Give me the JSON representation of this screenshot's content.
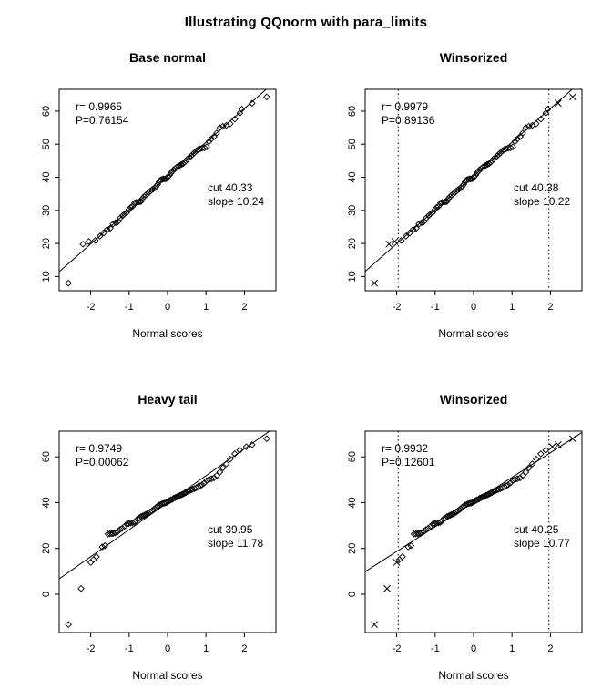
{
  "chart_data": {
    "type": "scatter",
    "layout": "2x2 QQ-plot panel figure",
    "main_title": "Illustrating QQnorm with para_limits",
    "xlabel": "Normal scores",
    "xlim": [
      -2.82,
      2.82
    ],
    "xticks": [
      -2,
      -1,
      0,
      1,
      2
    ],
    "marker_inside": "open-diamond",
    "marker_beyond_cutoff": "x-cross",
    "colors": {
      "foreground": "#000000",
      "background": "#ffffff"
    },
    "point_sets": {
      "base": [
        [
          -2.58,
          8.0
        ],
        [
          -2.2,
          19.8
        ],
        [
          -2.05,
          20.6
        ],
        [
          -1.88,
          20.9
        ],
        [
          -1.76,
          22.2
        ],
        [
          -1.66,
          23.2
        ],
        [
          -1.57,
          24.2
        ],
        [
          -1.49,
          24.6
        ],
        [
          -1.42,
          25.9
        ],
        [
          -1.35,
          26.3
        ],
        [
          -1.29,
          26.6
        ],
        [
          -1.23,
          27.7
        ],
        [
          -1.17,
          28.4
        ],
        [
          -1.12,
          28.9
        ],
        [
          -1.06,
          29.4
        ],
        [
          -1.01,
          30.2
        ],
        [
          -0.96,
          30.9
        ],
        [
          -0.91,
          31.2
        ],
        [
          -0.86,
          32.2
        ],
        [
          -0.82,
          32.4
        ],
        [
          -0.77,
          32.5
        ],
        [
          -0.73,
          32.6
        ],
        [
          -0.69,
          32.7
        ],
        [
          -0.65,
          33.6
        ],
        [
          -0.61,
          34.2
        ],
        [
          -0.57,
          34.6
        ],
        [
          -0.53,
          35.0
        ],
        [
          -0.49,
          35.3
        ],
        [
          -0.45,
          35.8
        ],
        [
          -0.41,
          36.2
        ],
        [
          -0.37,
          36.5
        ],
        [
          -0.33,
          36.8
        ],
        [
          -0.3,
          37.2
        ],
        [
          -0.26,
          37.8
        ],
        [
          -0.22,
          38.6
        ],
        [
          -0.18,
          39.2
        ],
        [
          -0.14,
          39.4
        ],
        [
          -0.1,
          39.5
        ],
        [
          -0.07,
          39.5
        ],
        [
          -0.03,
          39.6
        ],
        [
          0.01,
          40.1
        ],
        [
          0.05,
          40.6
        ],
        [
          0.09,
          41.3
        ],
        [
          0.13,
          41.9
        ],
        [
          0.16,
          42.3
        ],
        [
          0.2,
          42.6
        ],
        [
          0.24,
          43.0
        ],
        [
          0.28,
          43.4
        ],
        [
          0.32,
          43.6
        ],
        [
          0.36,
          43.9
        ],
        [
          0.4,
          44.1
        ],
        [
          0.44,
          44.5
        ],
        [
          0.48,
          45.0
        ],
        [
          0.52,
          45.5
        ],
        [
          0.56,
          45.9
        ],
        [
          0.61,
          46.4
        ],
        [
          0.65,
          46.9
        ],
        [
          0.7,
          47.4
        ],
        [
          0.75,
          48.0
        ],
        [
          0.8,
          48.4
        ],
        [
          0.85,
          48.6
        ],
        [
          0.9,
          48.8
        ],
        [
          0.96,
          48.9
        ],
        [
          1.02,
          49.2
        ],
        [
          1.08,
          50.8
        ],
        [
          1.14,
          51.6
        ],
        [
          1.21,
          52.3
        ],
        [
          1.28,
          53.4
        ],
        [
          1.36,
          55.0
        ],
        [
          1.44,
          55.4
        ],
        [
          1.53,
          55.7
        ],
        [
          1.63,
          56.2
        ],
        [
          1.75,
          57.6
        ],
        [
          1.88,
          59.4
        ],
        [
          1.93,
          60.6
        ],
        [
          2.2,
          62.4
        ],
        [
          2.58,
          64.3
        ]
      ],
      "heavy": [
        [
          -2.58,
          -13.2
        ],
        [
          -2.25,
          2.5
        ],
        [
          -2.0,
          13.9
        ],
        [
          -1.93,
          15.1
        ],
        [
          -1.85,
          16.4
        ],
        [
          -1.7,
          20.7
        ],
        [
          -1.63,
          21.2
        ],
        [
          -1.55,
          26.3
        ],
        [
          -1.5,
          26.4
        ],
        [
          -1.45,
          26.5
        ],
        [
          -1.41,
          26.6
        ],
        [
          -1.36,
          26.8
        ],
        [
          -1.3,
          27.4
        ],
        [
          -1.24,
          28.2
        ],
        [
          -1.18,
          28.8
        ],
        [
          -1.12,
          29.6
        ],
        [
          -1.06,
          30.6
        ],
        [
          -1.01,
          30.9
        ],
        [
          -0.96,
          31.1
        ],
        [
          -0.91,
          31.2
        ],
        [
          -0.86,
          31.4
        ],
        [
          -0.82,
          32.1
        ],
        [
          -0.77,
          33.0
        ],
        [
          -0.73,
          33.4
        ],
        [
          -0.69,
          33.9
        ],
        [
          -0.65,
          34.2
        ],
        [
          -0.61,
          34.5
        ],
        [
          -0.57,
          34.8
        ],
        [
          -0.53,
          35.1
        ],
        [
          -0.49,
          35.4
        ],
        [
          -0.45,
          35.9
        ],
        [
          -0.41,
          36.4
        ],
        [
          -0.37,
          36.9
        ],
        [
          -0.33,
          37.4
        ],
        [
          -0.3,
          37.9
        ],
        [
          -0.26,
          38.4
        ],
        [
          -0.22,
          38.9
        ],
        [
          -0.18,
          39.2
        ],
        [
          -0.14,
          39.5
        ],
        [
          -0.1,
          39.7
        ],
        [
          -0.07,
          39.8
        ],
        [
          -0.03,
          40.0
        ],
        [
          0.01,
          40.4
        ],
        [
          0.05,
          40.9
        ],
        [
          0.09,
          41.2
        ],
        [
          0.13,
          41.5
        ],
        [
          0.16,
          41.9
        ],
        [
          0.2,
          42.2
        ],
        [
          0.24,
          42.5
        ],
        [
          0.28,
          42.8
        ],
        [
          0.32,
          43.1
        ],
        [
          0.36,
          43.4
        ],
        [
          0.4,
          43.7
        ],
        [
          0.44,
          44.1
        ],
        [
          0.48,
          44.4
        ],
        [
          0.52,
          44.9
        ],
        [
          0.56,
          45.1
        ],
        [
          0.61,
          45.5
        ],
        [
          0.65,
          45.8
        ],
        [
          0.7,
          46.1
        ],
        [
          0.75,
          46.5
        ],
        [
          0.8,
          47.0
        ],
        [
          0.85,
          47.3
        ],
        [
          0.9,
          47.8
        ],
        [
          0.96,
          48.6
        ],
        [
          1.02,
          49.6
        ],
        [
          1.08,
          50.1
        ],
        [
          1.14,
          50.4
        ],
        [
          1.21,
          50.8
        ],
        [
          1.28,
          51.8
        ],
        [
          1.36,
          53.3
        ],
        [
          1.44,
          55.2
        ],
        [
          1.53,
          56.9
        ],
        [
          1.63,
          59.0
        ],
        [
          1.75,
          61.3
        ],
        [
          1.88,
          62.9
        ],
        [
          2.05,
          64.4
        ],
        [
          2.2,
          65.3
        ],
        [
          2.58,
          67.9
        ]
      ]
    },
    "panels": [
      {
        "title": "Base normal",
        "points": "base",
        "r_label": "r= 0.9965",
        "p_label": "P=0.76154",
        "cut_label": "cut 40.33",
        "slope_label": "slope  10.24",
        "cut": 40.33,
        "slope": 10.24,
        "ylim": [
          5.7,
          66.6
        ],
        "yticks": [
          10,
          20,
          30,
          40,
          50,
          60
        ],
        "winsor_limit": null
      },
      {
        "title": "Winsorized",
        "points": "base",
        "r_label": "r= 0.9979",
        "p_label": "P=0.89136",
        "cut_label": "cut 40.38",
        "slope_label": "slope  10.22",
        "cut": 40.38,
        "slope": 10.22,
        "ylim": [
          5.7,
          66.6
        ],
        "yticks": [
          10,
          20,
          30,
          40,
          50,
          60
        ],
        "winsor_limit": 1.96
      },
      {
        "title": "Heavy tail",
        "points": "heavy",
        "r_label": "r= 0.9749",
        "p_label": "P=0.00062",
        "cut_label": "cut 39.95",
        "slope_label": "slope  11.78",
        "cut": 39.95,
        "slope": 11.78,
        "ylim": [
          -16.7,
          71.2
        ],
        "yticks": [
          0,
          20,
          40,
          60
        ],
        "winsor_limit": null
      },
      {
        "title": "Winsorized",
        "points": "heavy",
        "r_label": "r= 0.9932",
        "p_label": "P=0.12601",
        "cut_label": "cut 40.25",
        "slope_label": "slope  10.77",
        "cut": 40.25,
        "slope": 10.77,
        "ylim": [
          -16.7,
          71.2
        ],
        "yticks": [
          0,
          20,
          40,
          60
        ],
        "winsor_limit": 1.96
      }
    ]
  }
}
